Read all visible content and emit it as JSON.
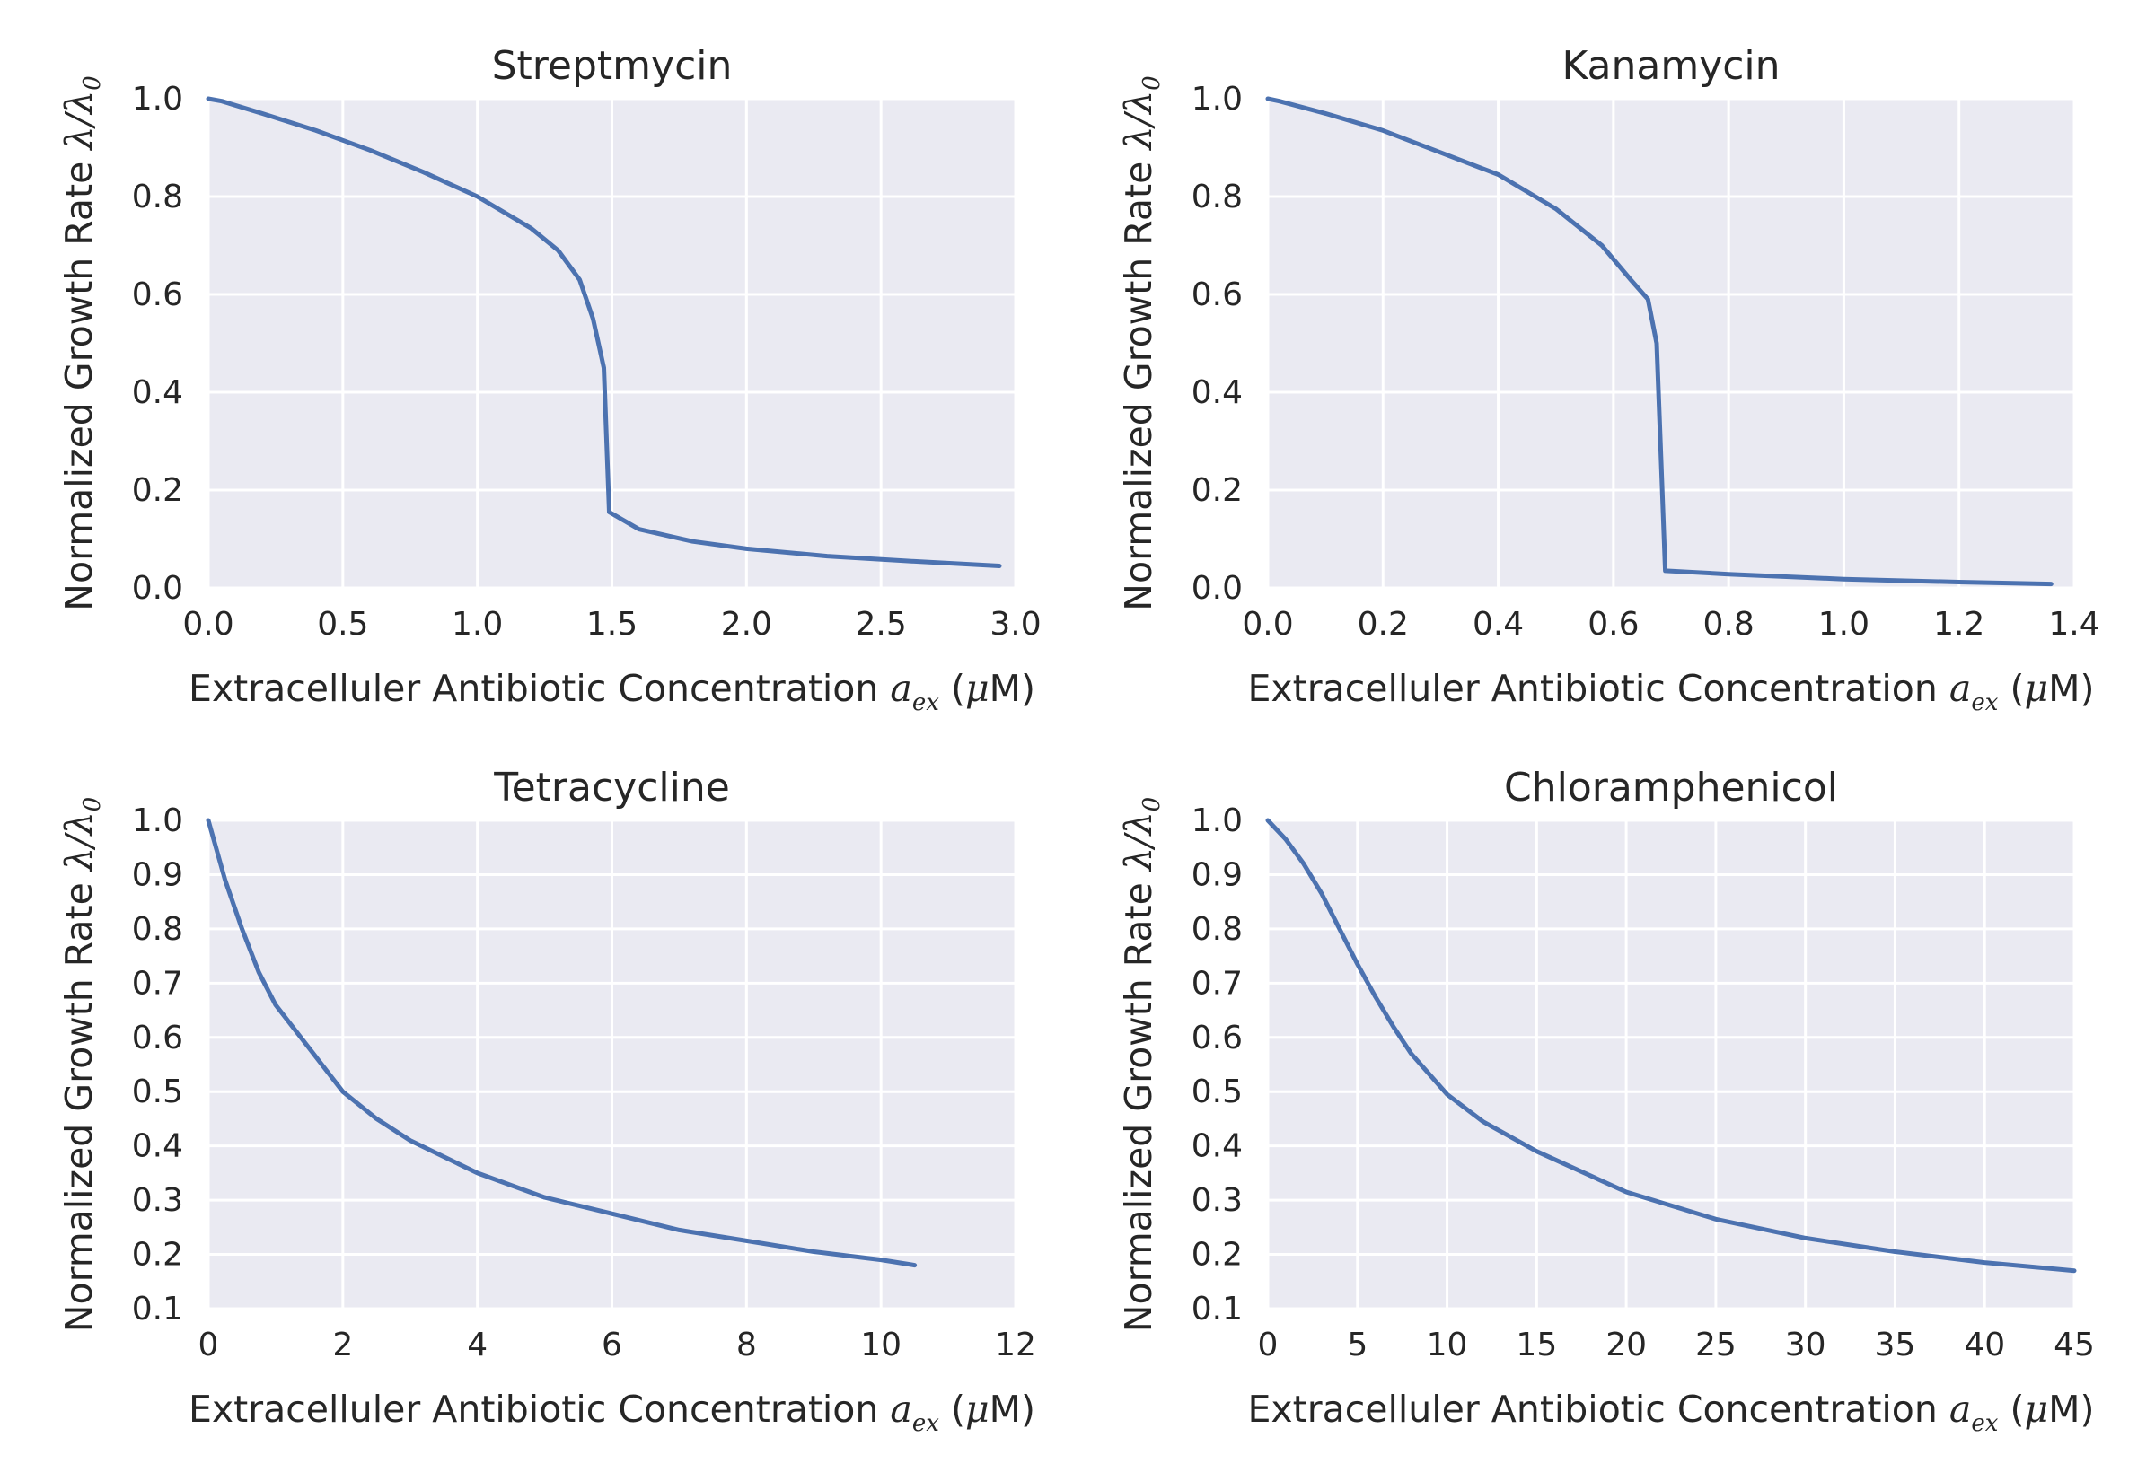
{
  "colors": {
    "line": "#4c72b0",
    "panel_bg": "#eaeaf2",
    "grid": "#ffffff",
    "text": "#262626"
  },
  "chart_data": [
    {
      "type": "line",
      "title": "Streptmycin",
      "ylabel_text": "Normalized Growth Rate",
      "xlabel_text": "Extracelluler Antibiotic Concentration",
      "xlabel_unit": "μM",
      "grid": true,
      "xlim": [
        0,
        3.0
      ],
      "ylim": [
        0,
        1.0
      ],
      "xticks": [
        "0.0",
        "0.5",
        "1.0",
        "1.5",
        "2.0",
        "2.5",
        "3.0"
      ],
      "yticks": [
        "0.0",
        "0.2",
        "0.4",
        "0.6",
        "0.8",
        "1.0"
      ],
      "series": [
        {
          "x": [
            0,
            0.05,
            0.2,
            0.4,
            0.6,
            0.8,
            1.0,
            1.2,
            1.3,
            1.38,
            1.43,
            1.47,
            1.49,
            1.6,
            1.8,
            2.0,
            2.3,
            2.6,
            2.94
          ],
          "y": [
            1.0,
            0.995,
            0.97,
            0.935,
            0.895,
            0.85,
            0.8,
            0.735,
            0.69,
            0.63,
            0.55,
            0.45,
            0.155,
            0.12,
            0.095,
            0.08,
            0.065,
            0.055,
            0.045
          ]
        }
      ]
    },
    {
      "type": "line",
      "title": "Kanamycin",
      "ylabel_text": "Normalized Growth Rate",
      "xlabel_text": "Extracelluler Antibiotic Concentration",
      "xlabel_unit": "μM",
      "grid": true,
      "xlim": [
        0,
        1.4
      ],
      "ylim": [
        0,
        1.0
      ],
      "xticks": [
        "0.0",
        "0.2",
        "0.4",
        "0.6",
        "0.8",
        "1.0",
        "1.2",
        "1.4"
      ],
      "yticks": [
        "0.0",
        "0.2",
        "0.4",
        "0.6",
        "0.8",
        "1.0"
      ],
      "series": [
        {
          "x": [
            0,
            0.02,
            0.1,
            0.2,
            0.3,
            0.4,
            0.5,
            0.58,
            0.63,
            0.66,
            0.675,
            0.69,
            0.8,
            1.0,
            1.2,
            1.36
          ],
          "y": [
            1.0,
            0.995,
            0.97,
            0.935,
            0.89,
            0.845,
            0.775,
            0.7,
            0.63,
            0.59,
            0.5,
            0.035,
            0.028,
            0.018,
            0.012,
            0.008
          ]
        }
      ]
    },
    {
      "type": "line",
      "title": "Tetracycline",
      "ylabel_text": "Normalized Growth Rate",
      "xlabel_text": "Extracelluler Antibiotic Concentration",
      "xlabel_unit": "μM",
      "grid": true,
      "xlim": [
        0,
        12
      ],
      "ylim": [
        0.1,
        1.0
      ],
      "xticks": [
        "0",
        "2",
        "4",
        "6",
        "8",
        "10",
        "12"
      ],
      "yticks": [
        "0.1",
        "0.2",
        "0.3",
        "0.4",
        "0.5",
        "0.6",
        "0.7",
        "0.8",
        "0.9",
        "1.0"
      ],
      "series": [
        {
          "x": [
            0,
            0.25,
            0.5,
            0.75,
            1,
            1.5,
            2,
            2.5,
            3,
            4,
            5,
            6,
            7,
            8,
            9,
            10,
            10.5
          ],
          "y": [
            1.0,
            0.89,
            0.8,
            0.72,
            0.66,
            0.58,
            0.5,
            0.45,
            0.41,
            0.35,
            0.305,
            0.275,
            0.245,
            0.225,
            0.205,
            0.19,
            0.18
          ]
        }
      ]
    },
    {
      "type": "line",
      "title": "Chloramphenicol",
      "ylabel_text": "Normalized Growth Rate",
      "xlabel_text": "Extracelluler Antibiotic Concentration",
      "xlabel_unit": "μM",
      "grid": true,
      "xlim": [
        0,
        45
      ],
      "ylim": [
        0.1,
        1.0
      ],
      "xticks": [
        "0",
        "5",
        "10",
        "15",
        "20",
        "25",
        "30",
        "35",
        "40",
        "45"
      ],
      "yticks": [
        "0.1",
        "0.2",
        "0.3",
        "0.4",
        "0.5",
        "0.6",
        "0.7",
        "0.8",
        "0.9",
        "1.0"
      ],
      "series": [
        {
          "x": [
            0,
            1,
            2,
            3,
            4,
            5,
            6,
            7,
            8,
            10,
            12,
            15,
            20,
            25,
            30,
            35,
            40,
            45
          ],
          "y": [
            1.0,
            0.965,
            0.92,
            0.865,
            0.8,
            0.735,
            0.675,
            0.62,
            0.57,
            0.495,
            0.445,
            0.39,
            0.315,
            0.265,
            0.23,
            0.205,
            0.185,
            0.17
          ]
        }
      ]
    }
  ]
}
